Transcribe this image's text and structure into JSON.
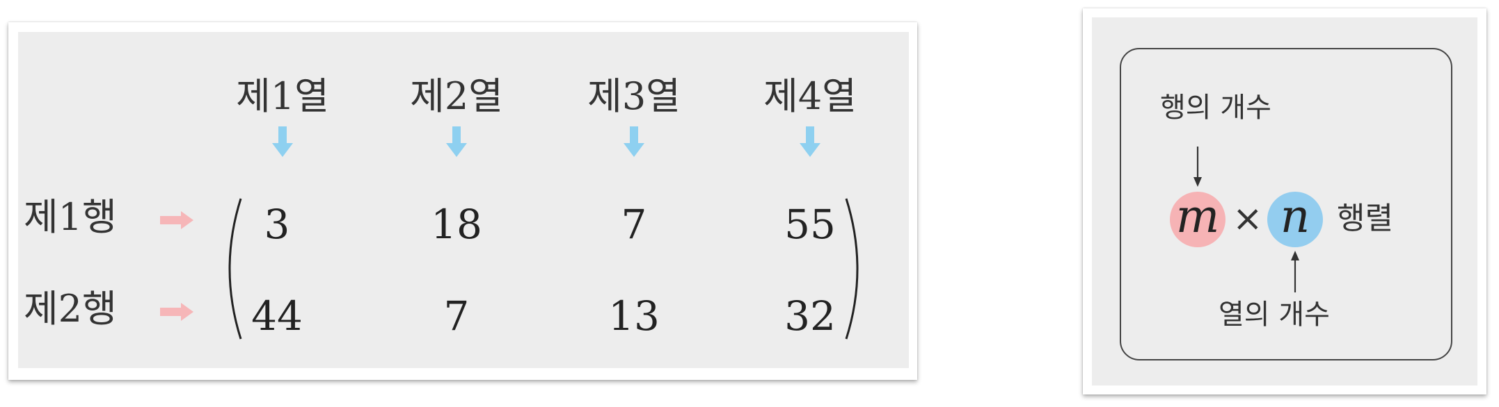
{
  "matrix_figure": {
    "column_headers": [
      "제1열",
      "제2열",
      "제3열",
      "제4열"
    ],
    "row_headers": [
      "제1행",
      "제2행"
    ],
    "rows": [
      [
        "3",
        "18",
        "7",
        "55"
      ],
      [
        "44",
        "7",
        "13",
        "32"
      ]
    ],
    "colors": {
      "column_arrow": "#8ed0f0",
      "row_arrow": "#f6b6b8",
      "panel_background": "#ededed"
    }
  },
  "dimension_figure": {
    "row_count_label": "행의 개수",
    "column_count_label": "열의 개수",
    "m": "m",
    "times": "×",
    "n": "n",
    "suffix": "행렬",
    "colors": {
      "m_circle": "#f6b3b5",
      "n_circle": "#93cdef",
      "border": "#444444"
    }
  }
}
